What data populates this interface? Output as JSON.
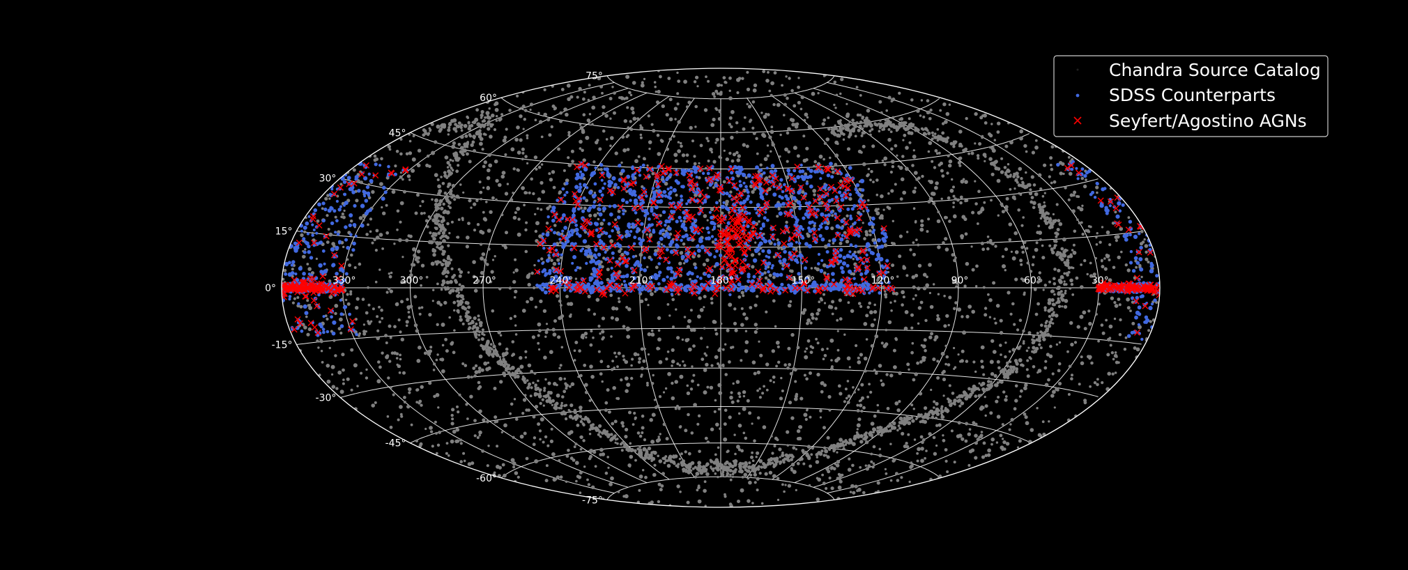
{
  "chart_data": {
    "type": "scatter",
    "projection": "hammer-aitoff (all-sky)",
    "grid": true,
    "background": "#000000",
    "xticks": [
      "330°",
      "300°",
      "270°",
      "240°",
      "210°",
      "180°",
      "150°",
      "120°",
      "90°",
      "60°",
      "30°"
    ],
    "yticks": [
      "75°",
      "60°",
      "45°",
      "30°",
      "15°",
      "0°",
      "-15°",
      "-30°",
      "-45°",
      "-60°",
      "-75°"
    ],
    "legend": {
      "placement": "top-right"
    },
    "series": [
      {
        "name": "Chandra Source Catalog",
        "marker": "dot",
        "color": "#808080",
        "distribution": "uniform all-sky plus dense galactic-plane band",
        "approx_count": 4500
      },
      {
        "name": "SDSS Counterparts",
        "marker": "dot",
        "color": "#4169e1",
        "distribution": "concentrated at dec 0°–45° in RA ranges 110°–250° and 330°–50°",
        "approx_count": 2000
      },
      {
        "name": "Seyfert/Agostino AGNs",
        "marker": "x",
        "color": "#ff0000",
        "distribution": "subset of SDSS counterparts, strong concentration along dec 0° strip",
        "approx_count": 700
      }
    ]
  }
}
